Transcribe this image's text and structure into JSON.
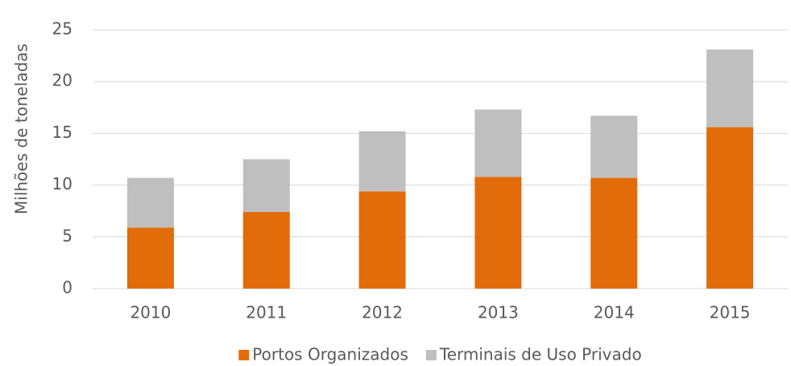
{
  "chart_data": {
    "type": "stacked-bar",
    "ylabel": "Milhões de toneladas",
    "categories": [
      "2010",
      "2011",
      "2012",
      "2013",
      "2014",
      "2015"
    ],
    "series": [
      {
        "name": "Portos Organizados",
        "color": "#e36c0a",
        "values": [
          5.9,
          7.4,
          9.4,
          10.8,
          10.7,
          15.6
        ]
      },
      {
        "name": "Terminais de Uso Privado",
        "color": "#bfbfbf",
        "values": [
          4.8,
          5.1,
          5.8,
          6.5,
          6.0,
          7.5
        ]
      }
    ],
    "ylim": [
      0,
      25
    ],
    "yticks": [
      0,
      5,
      10,
      15,
      20,
      25
    ],
    "grid": true,
    "legend": "bottom"
  }
}
